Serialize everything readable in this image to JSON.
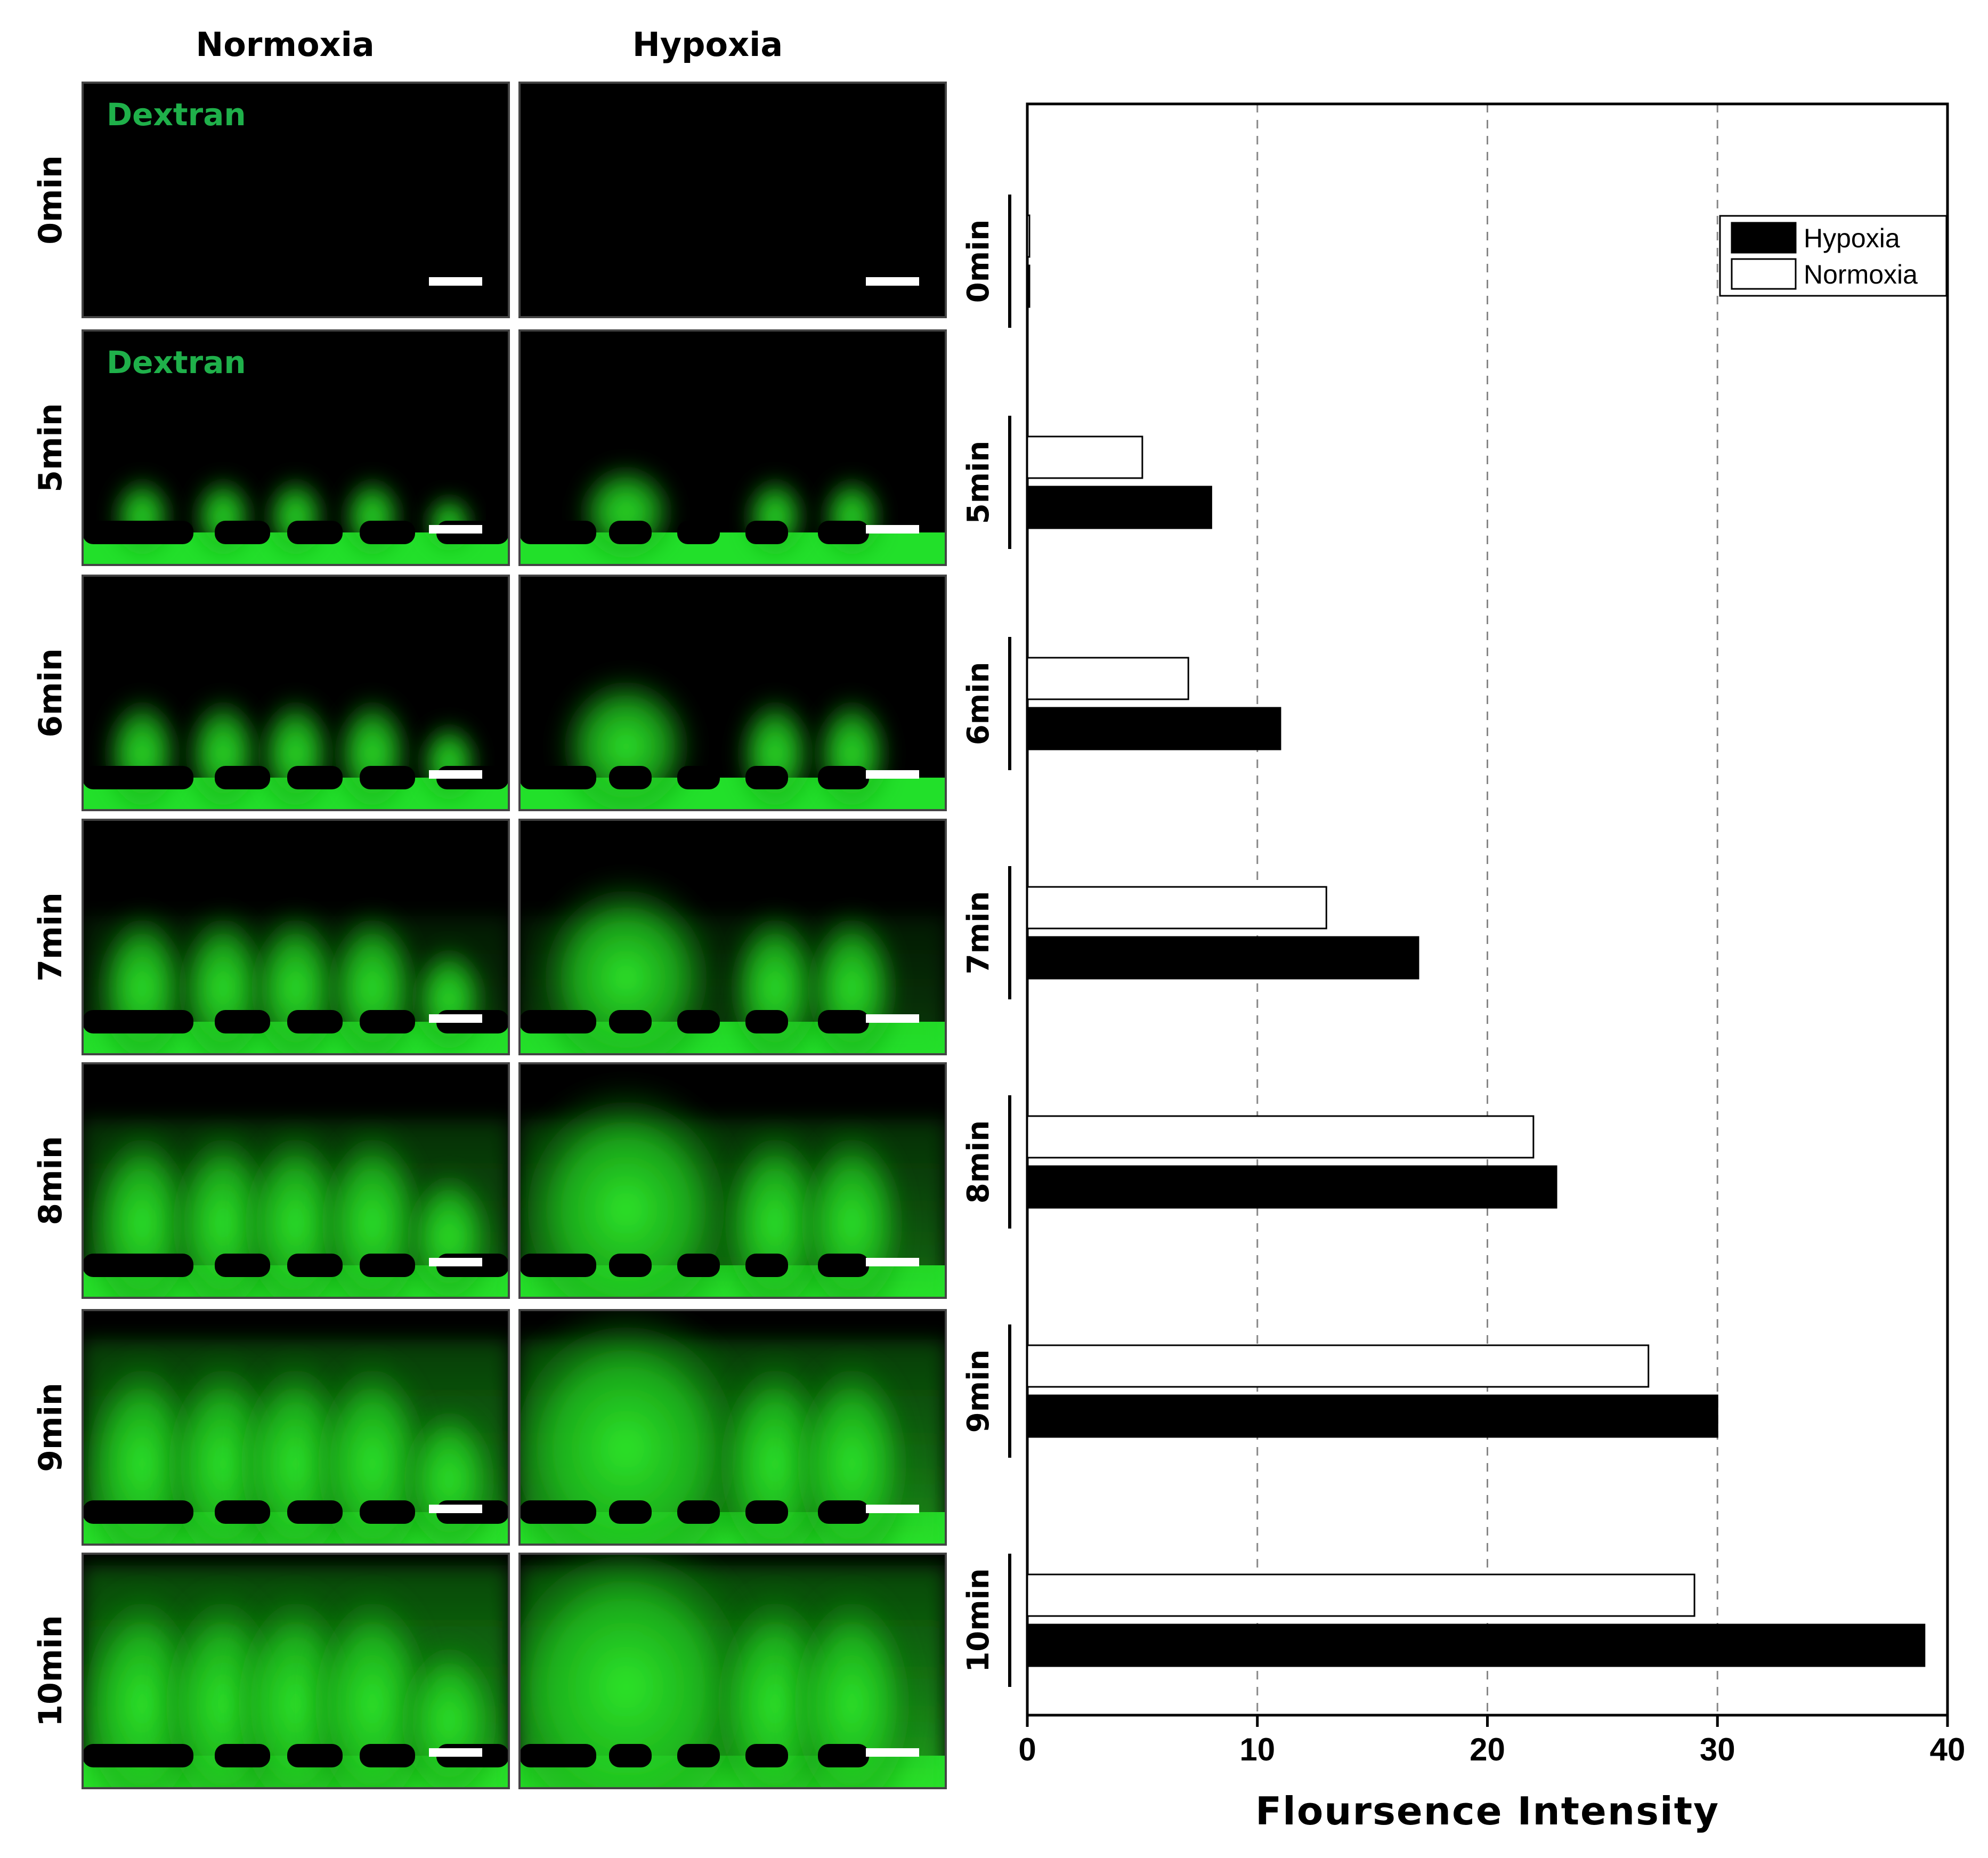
{
  "columns": [
    "Normoxia",
    "Hypoxia"
  ],
  "stain_label": "Dextran",
  "time_points": [
    "0min",
    "5min",
    "6min",
    "7min",
    "8min",
    "9min",
    "10min"
  ],
  "colors": {
    "fluorescence": "#22e02a",
    "hypoxia_bar": "#000000",
    "normoxia_bar": "#ffffff"
  },
  "chart_data": {
    "type": "bar",
    "orientation": "horizontal",
    "categories": [
      "0min",
      "5min",
      "6min",
      "7min",
      "8min",
      "9min",
      "10min"
    ],
    "series": [
      {
        "name": "Hypoxia",
        "values": [
          0,
          8,
          11,
          17,
          23,
          30,
          39
        ]
      },
      {
        "name": "Normoxia",
        "values": [
          0,
          5,
          7,
          13,
          22,
          27,
          29
        ]
      }
    ],
    "xlabel": "Floursence Intensity",
    "ylabel": "",
    "xlim": [
      0,
      40
    ],
    "xticks": [
      0,
      10,
      20,
      30,
      40
    ],
    "grid": "vertical dashed",
    "legend_position": "top-right"
  }
}
